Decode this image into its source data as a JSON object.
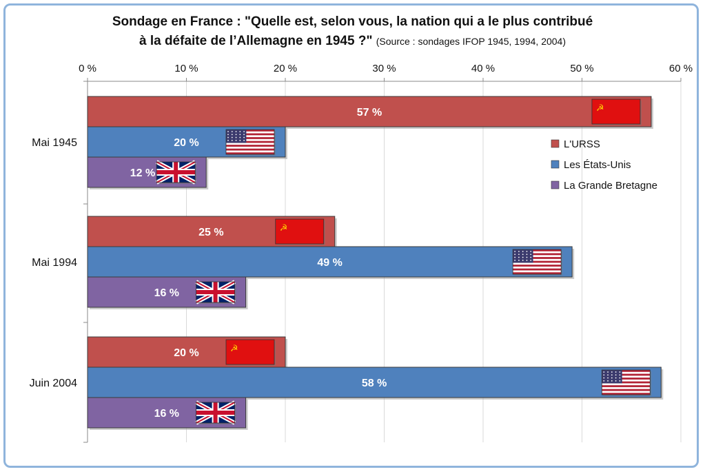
{
  "title_line1": "Sondage en France : \"Quelle est, selon vous, la nation qui a le plus contribué",
  "title_line2": "à la défaite de l’Allemagne en 1945 ?\"",
  "source": "(Source : sondages IFOP 1945, 1994, 2004)",
  "colors": {
    "urss": "#c0504d",
    "usa": "#4f81bd",
    "gb": "#8064a2"
  },
  "chart_data": {
    "type": "bar",
    "orientation": "horizontal",
    "categories": [
      "Mai 1945",
      "Mai 1994",
      "Juin 2004"
    ],
    "series": [
      {
        "name": "L'URSS",
        "values": [
          57,
          25,
          20
        ],
        "flag": "ussr-flag"
      },
      {
        "name": "Les États-Unis",
        "values": [
          20,
          49,
          58
        ],
        "flag": "usa-flag"
      },
      {
        "name": "La Grande Bretagne",
        "values": [
          12,
          16,
          16
        ],
        "flag": "uk-flag"
      }
    ],
    "value_labels": [
      [
        "57 %",
        "25 %",
        "20 %"
      ],
      [
        "20 %",
        "49 %",
        "58 %"
      ],
      [
        "12 %",
        "16 %",
        "16 %"
      ]
    ],
    "xlim": [
      0,
      60
    ],
    "xticks": [
      0,
      10,
      20,
      30,
      40,
      50,
      60
    ],
    "xtick_labels": [
      "0 %",
      "10 %",
      "20 %",
      "30 %",
      "40 %",
      "50 %",
      "60 %"
    ],
    "axis_position": "top",
    "grid": true,
    "legend": "right"
  }
}
